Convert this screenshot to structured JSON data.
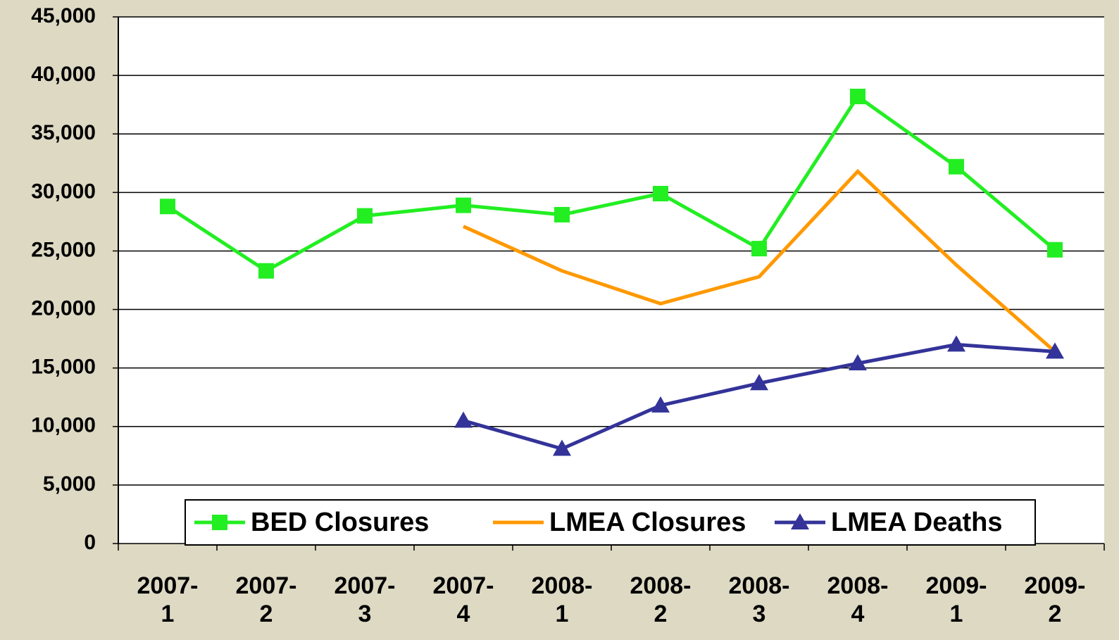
{
  "chart_data": {
    "type": "line",
    "categories": [
      "2007-\n1",
      "2007-\n2",
      "2007-\n3",
      "2007-\n4",
      "2008-\n1",
      "2008-\n2",
      "2008-\n3",
      "2008-\n4",
      "2009-\n1",
      "2009-\n2"
    ],
    "series": [
      {
        "name": "BED Closures",
        "color": "#22ee22",
        "marker": "square",
        "values": [
          28800,
          23300,
          28000,
          28900,
          28100,
          29900,
          25200,
          38200,
          32200,
          25100
        ]
      },
      {
        "name": "LMEA Closures",
        "color": "#ff9900",
        "marker": "none",
        "values": [
          null,
          null,
          null,
          27100,
          23300,
          20500,
          22800,
          31800,
          23800,
          16400
        ]
      },
      {
        "name": "LMEA Deaths",
        "color": "#333399",
        "marker": "triangle",
        "values": [
          null,
          null,
          null,
          10500,
          8100,
          11800,
          13700,
          15400,
          17000,
          16400
        ]
      }
    ],
    "ylim": [
      0,
      45000
    ],
    "yticks": [
      0,
      {
        "value": 5000,
        "label": "5,000"
      },
      {
        "value": 10000,
        "label": "10,000"
      },
      {
        "value": 15000,
        "label": "15,000"
      },
      {
        "value": 20000,
        "label": "20,000"
      },
      {
        "value": 25000,
        "label": "25,000"
      },
      {
        "value": 30000,
        "label": "30,000"
      },
      {
        "value": 35000,
        "label": "35,000"
      },
      {
        "value": 40000,
        "label": "40,000"
      },
      {
        "value": 45000,
        "label": "45,000"
      }
    ],
    "grid": true,
    "legend": "bottom"
  }
}
